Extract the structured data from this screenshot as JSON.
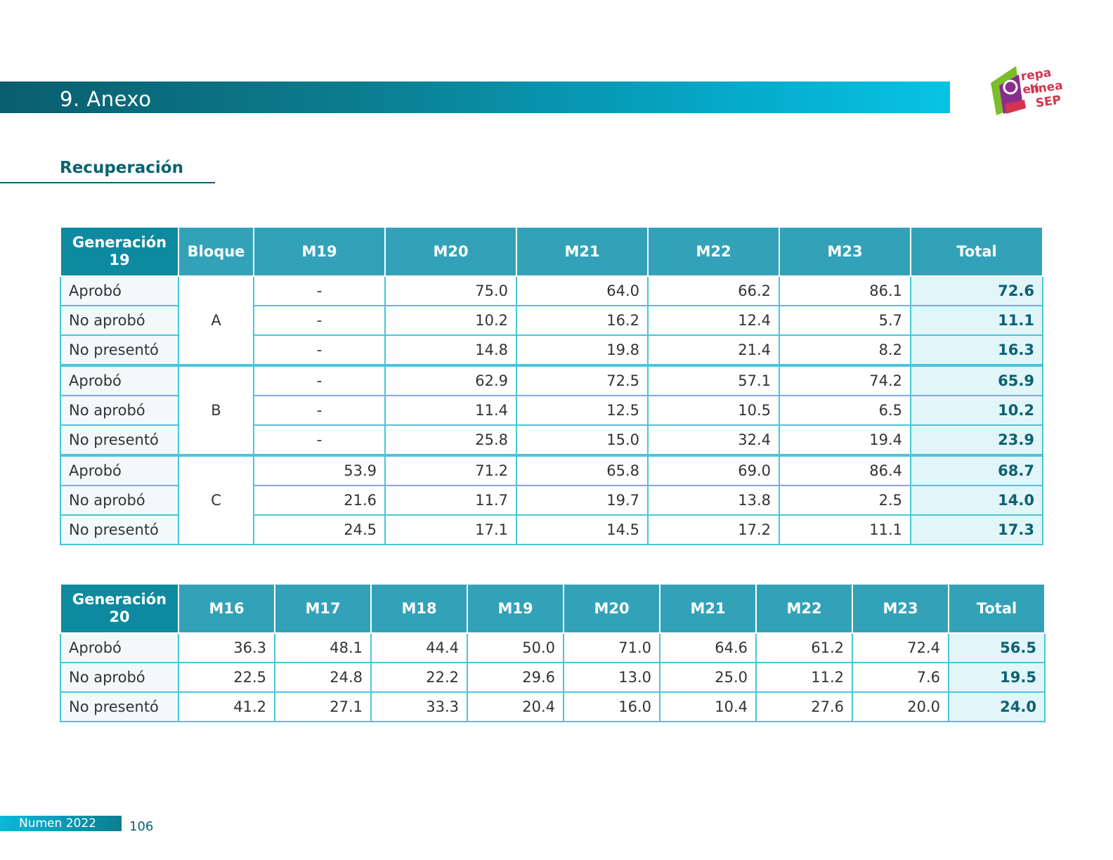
{
  "header": {
    "title": "9. Anexo"
  },
  "logo": {
    "line1": "repa en",
    "line2": "línea",
    "line3": "SEP",
    "colors": {
      "green": "#7dbd2a",
      "purple": "#8a2c8f",
      "red": "#d4344e"
    }
  },
  "section": {
    "title": "Recuperación"
  },
  "table1": {
    "gen_line1": "Generación",
    "gen_line2": "19",
    "headers": [
      "Bloque",
      "M19",
      "M20",
      "M21",
      "M22",
      "M23",
      "Total"
    ],
    "groups": [
      {
        "block": "A",
        "rows": [
          {
            "label": "Aprobó",
            "values": [
              "-",
              "75.0",
              "64.0",
              "66.2",
              "86.1"
            ],
            "total": "72.6"
          },
          {
            "label": "No aprobó",
            "values": [
              "-",
              "10.2",
              "16.2",
              "12.4",
              "5.7"
            ],
            "total": "11.1"
          },
          {
            "label": "No presentó",
            "values": [
              "-",
              "14.8",
              "19.8",
              "21.4",
              "8.2"
            ],
            "total": "16.3"
          }
        ]
      },
      {
        "block": "B",
        "rows": [
          {
            "label": "Aprobó",
            "values": [
              "-",
              "62.9",
              "72.5",
              "57.1",
              "74.2"
            ],
            "total": "65.9"
          },
          {
            "label": "No aprobó",
            "values": [
              "-",
              "11.4",
              "12.5",
              "10.5",
              "6.5"
            ],
            "total": "10.2"
          },
          {
            "label": "No presentó",
            "values": [
              "-",
              "25.8",
              "15.0",
              "32.4",
              "19.4"
            ],
            "total": "23.9"
          }
        ]
      },
      {
        "block": "C",
        "rows": [
          {
            "label": "Aprobó",
            "values": [
              "53.9",
              "71.2",
              "65.8",
              "69.0",
              "86.4"
            ],
            "total": "68.7"
          },
          {
            "label": "No aprobó",
            "values": [
              "21.6",
              "11.7",
              "19.7",
              "13.8",
              "2.5"
            ],
            "total": "14.0"
          },
          {
            "label": "No presentó",
            "values": [
              "24.5",
              "17.1",
              "14.5",
              "17.2",
              "11.1"
            ],
            "total": "17.3"
          }
        ]
      }
    ]
  },
  "table2": {
    "gen_line1": "Generación",
    "gen_line2": "20",
    "headers": [
      "M16",
      "M17",
      "M18",
      "M19",
      "M20",
      "M21",
      "M22",
      "M23",
      "Total"
    ],
    "rows": [
      {
        "label": "Aprobó",
        "values": [
          "36.3",
          "48.1",
          "44.4",
          "50.0",
          "71.0",
          "64.6",
          "61.2",
          "72.4"
        ],
        "total": "56.5"
      },
      {
        "label": "No aprobó",
        "values": [
          "22.5",
          "24.8",
          "22.2",
          "29.6",
          "13.0",
          "25.0",
          "11.2",
          "7.6"
        ],
        "total": "19.5"
      },
      {
        "label": "No presentó",
        "values": [
          "41.2",
          "27.1",
          "33.3",
          "20.4",
          "16.0",
          "10.4",
          "27.6",
          "20.0"
        ],
        "total": "24.0"
      }
    ]
  },
  "footer": {
    "publication": "Numen 2022",
    "page": "106"
  }
}
